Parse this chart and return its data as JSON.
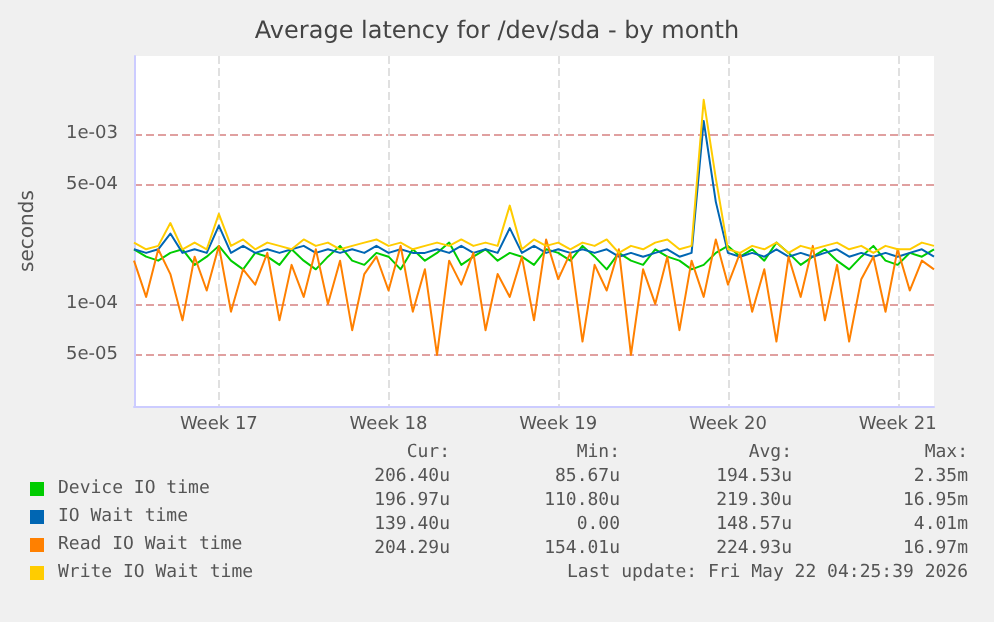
{
  "chart_data": {
    "type": "line",
    "title": "Average latency for /dev/sda - by month",
    "ylabel": "seconds",
    "log": "y",
    "grid": true,
    "legend": "bottom",
    "marker": "none",
    "line_style": "solid",
    "categories": [
      null,
      null,
      null,
      null,
      null,
      null,
      null,
      "Week 17",
      null,
      null,
      null,
      null,
      null,
      null,
      null,
      null,
      null,
      null,
      null,
      null,
      null,
      "Week 18",
      null,
      null,
      null,
      null,
      null,
      null,
      null,
      null,
      null,
      null,
      null,
      null,
      null,
      "Week 19",
      null,
      null,
      null,
      null,
      null,
      null,
      null,
      null,
      null,
      null,
      null,
      null,
      null,
      "Week 20",
      null,
      null,
      null,
      null,
      null,
      null,
      null,
      null,
      null,
      null,
      null,
      null,
      null,
      "Week 21",
      null,
      null,
      null
    ],
    "ylim": [
      2.5e-05,
      0.0029
    ],
    "yticks": [
      {
        "value": 5e-05,
        "label": "5e-05"
      },
      {
        "value": 0.0001,
        "label": "1e-04"
      },
      {
        "value": 0.0005,
        "label": "5e-04"
      },
      {
        "value": 0.001,
        "label": "1e-03"
      }
    ],
    "series": [
      {
        "name": "Device IO time",
        "color": "#00cc00",
        "values": [
          0.00021,
          0.00019,
          0.00018,
          0.0002,
          0.00021,
          0.00017,
          0.00019,
          0.00022,
          0.00018,
          0.00016,
          0.0002,
          0.00019,
          0.00017,
          0.00021,
          0.00018,
          0.00016,
          0.00019,
          0.00022,
          0.00018,
          0.00017,
          0.0002,
          0.00019,
          0.00016,
          0.00021,
          0.00018,
          0.0002,
          0.00023,
          0.00017,
          0.00019,
          0.00021,
          0.00018,
          0.0002,
          0.00019,
          0.00017,
          0.00021,
          0.0002,
          0.00018,
          0.00022,
          0.00019,
          0.00016,
          0.0002,
          0.00018,
          0.00017,
          0.00021,
          0.00019,
          0.00018,
          0.00016,
          0.00017,
          0.0002,
          0.00022,
          0.00019,
          0.00021,
          0.00018,
          0.00023,
          0.0002,
          0.00017,
          0.00019,
          0.00021,
          0.00018,
          0.00016,
          0.00019,
          0.00022,
          0.00018,
          0.00017,
          0.0002,
          0.00019,
          0.00021
        ]
      },
      {
        "name": "IO Wait time",
        "color": "#0066b3",
        "values": [
          0.00021,
          0.0002,
          0.00021,
          0.00026,
          0.0002,
          0.00021,
          0.0002,
          0.00029,
          0.0002,
          0.00022,
          0.0002,
          0.00021,
          0.0002,
          0.00021,
          0.00022,
          0.0002,
          0.00021,
          0.0002,
          0.00021,
          0.0002,
          0.00022,
          0.0002,
          0.00021,
          0.0002,
          0.0002,
          0.00021,
          0.0002,
          0.00022,
          0.0002,
          0.00021,
          0.0002,
          0.00028,
          0.0002,
          0.00022,
          0.0002,
          0.00021,
          0.0002,
          0.00021,
          0.0002,
          0.00021,
          0.00019,
          0.0002,
          0.00019,
          0.0002,
          0.00021,
          0.00019,
          0.0002,
          0.0012,
          0.0004,
          0.0002,
          0.00019,
          0.0002,
          0.00019,
          0.00021,
          0.00019,
          0.0002,
          0.00019,
          0.0002,
          0.00021,
          0.00019,
          0.0002,
          0.00019,
          0.0002,
          0.00019,
          0.0002,
          0.00021,
          0.00019
        ]
      },
      {
        "name": "Read IO Wait time",
        "color": "#ff8000",
        "values": [
          0.00018,
          0.00011,
          0.00021,
          0.00015,
          8e-05,
          0.00019,
          0.00012,
          0.00022,
          9e-05,
          0.00016,
          0.00013,
          0.0002,
          8e-05,
          0.00017,
          0.00011,
          0.00021,
          0.0001,
          0.00018,
          7e-05,
          0.00015,
          0.00019,
          0.00012,
          0.00022,
          9e-05,
          0.00016,
          5e-05,
          0.00018,
          0.00013,
          0.0002,
          7e-05,
          0.00015,
          0.00011,
          0.00019,
          8e-05,
          0.00024,
          0.00014,
          0.0002,
          6e-05,
          0.00017,
          0.00012,
          0.00021,
          5e-05,
          0.00016,
          0.0001,
          0.00019,
          7e-05,
          0.00018,
          0.00011,
          0.00024,
          0.00013,
          0.0002,
          9e-05,
          0.00016,
          6e-05,
          0.00019,
          0.00011,
          0.00022,
          8e-05,
          0.00017,
          6e-05,
          0.00014,
          0.00019,
          9e-05,
          0.00021,
          0.00012,
          0.00018,
          0.00016
        ]
      },
      {
        "name": "Write IO Wait time",
        "color": "#ffcc00",
        "values": [
          0.00023,
          0.00021,
          0.00022,
          0.0003,
          0.00021,
          0.00023,
          0.00021,
          0.00034,
          0.00022,
          0.00024,
          0.00021,
          0.00023,
          0.00022,
          0.00021,
          0.00024,
          0.00022,
          0.00023,
          0.00021,
          0.00022,
          0.00023,
          0.00024,
          0.00022,
          0.00023,
          0.00021,
          0.00022,
          0.00023,
          0.00022,
          0.00024,
          0.00022,
          0.00023,
          0.00022,
          0.00038,
          0.00021,
          0.00024,
          0.00022,
          0.00023,
          0.00021,
          0.00023,
          0.00022,
          0.00024,
          0.0002,
          0.00022,
          0.00021,
          0.00023,
          0.00024,
          0.00021,
          0.00022,
          0.0016,
          0.00055,
          0.00021,
          0.0002,
          0.00022,
          0.00021,
          0.00023,
          0.0002,
          0.00022,
          0.00021,
          0.00022,
          0.00023,
          0.00021,
          0.00022,
          0.0002,
          0.00022,
          0.00021,
          0.00021,
          0.00023,
          0.00022
        ]
      }
    ],
    "annotations": [
      "Cur:",
      "Min:",
      "Avg:",
      "Max:",
      "206.40u",
      "85.67u",
      "194.53u",
      "2.35m",
      "196.97u",
      "110.80u",
      "219.30u",
      "16.95m",
      "139.40u",
      "0.00",
      "148.57u",
      "4.01m",
      "204.29u",
      "154.01u",
      "224.93u",
      "16.97m",
      "Last update: Fri May 22 04:25:39 2026"
    ]
  }
}
